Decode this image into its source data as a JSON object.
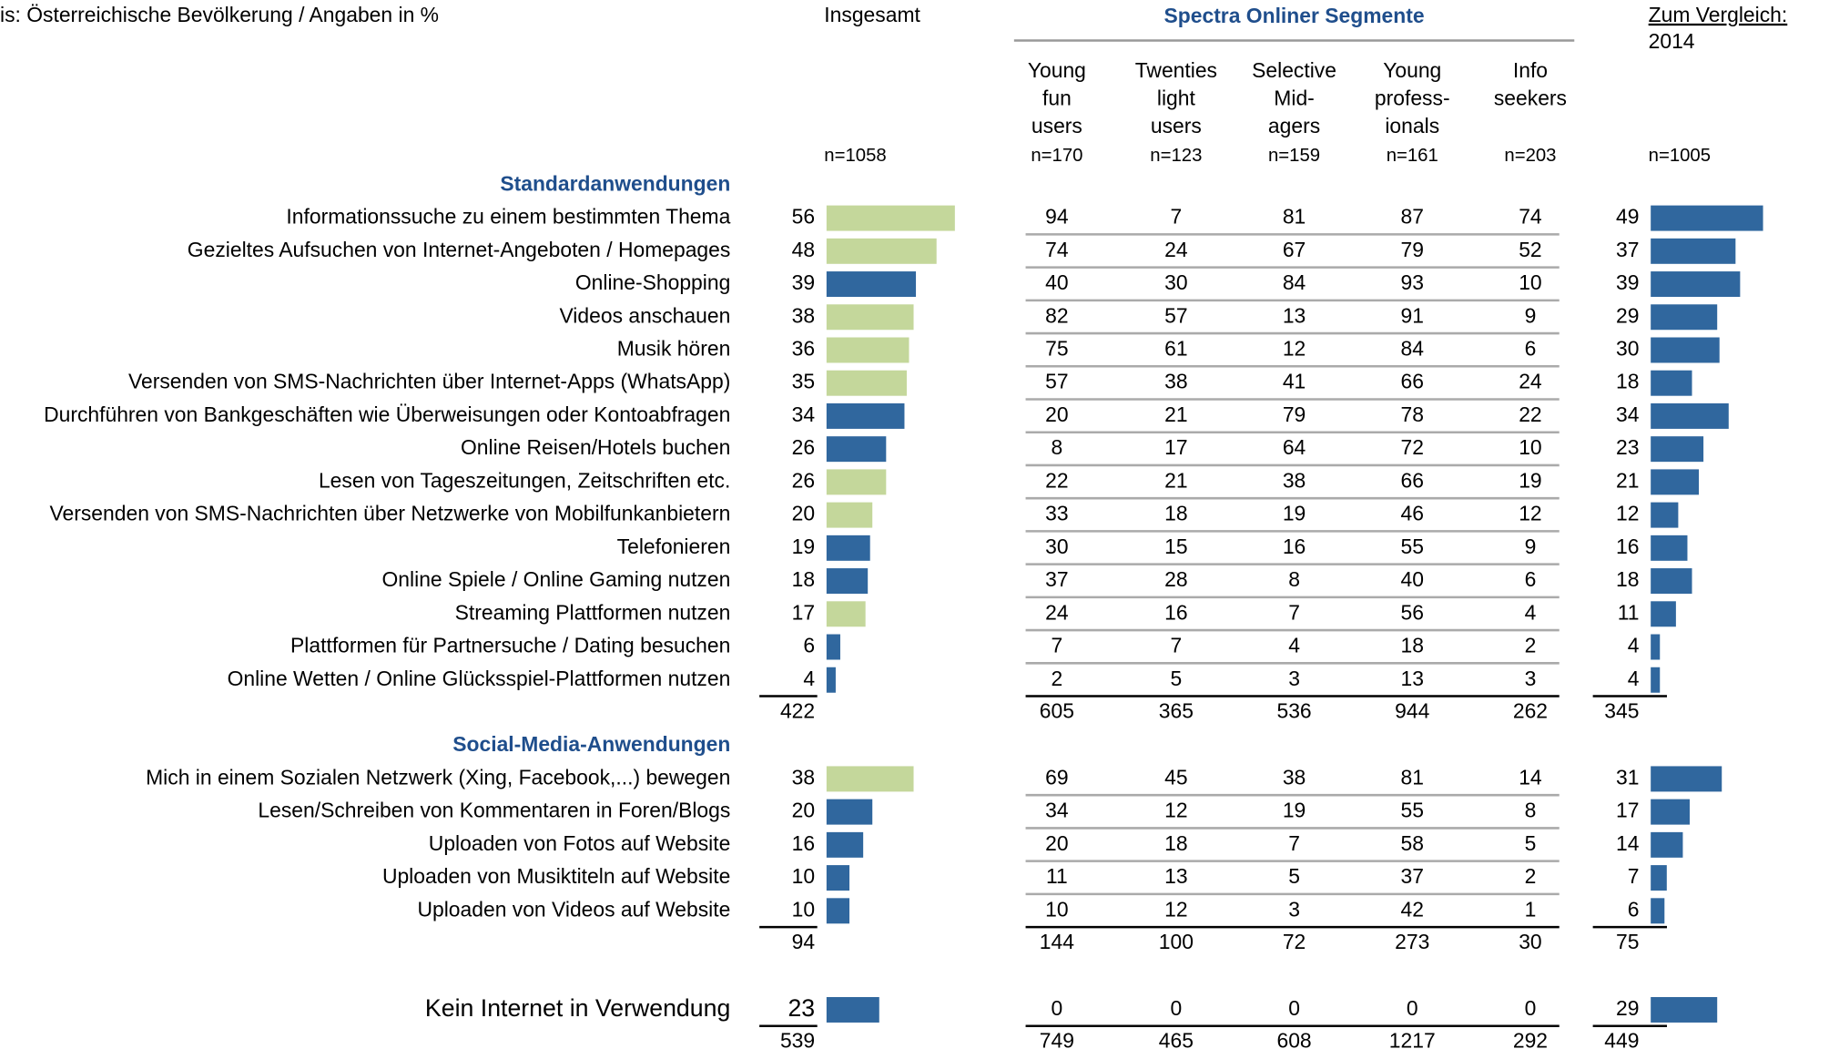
{
  "header": {
    "source": "is: Österreichische Bevölkerung / Angaben in %",
    "total": "Insgesamt",
    "segments": "Spectra Onliner Segmente",
    "compare": [
      "Zum Vergleich:",
      "2014"
    ]
  },
  "segment_names": [
    [
      "Young",
      "fun",
      "users"
    ],
    [
      "Twenties",
      "light",
      "users"
    ],
    [
      "Selective",
      "Mid-",
      "agers"
    ],
    [
      "Young",
      "profess-",
      "ionals"
    ],
    [
      "Info",
      "seekers"
    ]
  ],
  "n": {
    "total": "n=1058",
    "segments": [
      "n=170",
      "n=123",
      "n=159",
      "n=161",
      "n=203"
    ],
    "compare": "n=1005"
  },
  "compare_color": "#30679e",
  "sections": [
    {
      "title": "Standardanwendungen",
      "rows": [
        {
          "label": "Informationssuche zu einem bestimmten Thema",
          "total": 56,
          "color": "#c4d79b",
          "segments": [
            94,
            7,
            81,
            87,
            74
          ],
          "compare": 49
        },
        {
          "label": "Gezieltes Aufsuchen von Internet-Angeboten / Homepages",
          "total": 48,
          "color": "#c4d79b",
          "segments": [
            74,
            24,
            67,
            79,
            52
          ],
          "compare": 37
        },
        {
          "label": "Online-Shopping",
          "total": 39,
          "color": "#30679e",
          "segments": [
            40,
            30,
            84,
            93,
            10
          ],
          "compare": 39
        },
        {
          "label": "Videos anschauen",
          "total": 38,
          "color": "#c4d79b",
          "segments": [
            82,
            57,
            13,
            91,
            9
          ],
          "compare": 29
        },
        {
          "label": "Musik hören",
          "total": 36,
          "color": "#c4d79b",
          "segments": [
            75,
            61,
            12,
            84,
            6
          ],
          "compare": 30
        },
        {
          "label": "Versenden von SMS-Nachrichten über Internet-Apps (WhatsApp)",
          "total": 35,
          "color": "#c4d79b",
          "segments": [
            57,
            38,
            41,
            66,
            24
          ],
          "compare": 18
        },
        {
          "label": "Durchführen von Bankgeschäften wie Überweisungen oder Kontoabfragen",
          "total": 34,
          "color": "#30679e",
          "segments": [
            20,
            21,
            79,
            78,
            22
          ],
          "compare": 34
        },
        {
          "label": "Online Reisen/Hotels buchen",
          "total": 26,
          "color": "#30679e",
          "segments": [
            8,
            17,
            64,
            72,
            10
          ],
          "compare": 23
        },
        {
          "label": "Lesen von Tageszeitungen, Zeitschriften etc.",
          "total": 26,
          "color": "#c4d79b",
          "segments": [
            22,
            21,
            38,
            66,
            19
          ],
          "compare": 21
        },
        {
          "label": "Versenden von SMS-Nachrichten über Netzwerke von Mobilfunkanbietern",
          "total": 20,
          "color": "#c4d79b",
          "segments": [
            33,
            18,
            19,
            46,
            12
          ],
          "compare": 12
        },
        {
          "label": "Telefonieren",
          "total": 19,
          "color": "#30679e",
          "segments": [
            30,
            15,
            16,
            55,
            9
          ],
          "compare": 16
        },
        {
          "label": "Online Spiele / Online Gaming nutzen",
          "total": 18,
          "color": "#30679e",
          "segments": [
            37,
            28,
            8,
            40,
            6
          ],
          "compare": 18
        },
        {
          "label": "Streaming Plattformen nutzen",
          "total": 17,
          "color": "#c4d79b",
          "segments": [
            24,
            16,
            7,
            56,
            4
          ],
          "compare": 11
        },
        {
          "label": "Plattformen für Partnersuche / Dating besuchen",
          "total": 6,
          "color": "#30679e",
          "segments": [
            7,
            7,
            4,
            18,
            2
          ],
          "compare": 4
        },
        {
          "label": "Online Wetten / Online Glücksspiel-Plattformen nutzen",
          "total": 4,
          "color": "#30679e",
          "segments": [
            2,
            5,
            3,
            13,
            3
          ],
          "compare": 4
        }
      ],
      "sum": {
        "total": 422,
        "segments": [
          605,
          365,
          536,
          944,
          262
        ],
        "compare": 345
      }
    },
    {
      "title": "Social-Media-Anwendungen",
      "rows": [
        {
          "label": "Mich in einem Sozialen Netzwerk (Xing, Facebook,...) bewegen",
          "total": 38,
          "color": "#c4d79b",
          "segments": [
            69,
            45,
            38,
            81,
            14
          ],
          "compare": 31
        },
        {
          "label": "Lesen/Schreiben von Kommentaren in Foren/Blogs",
          "total": 20,
          "color": "#30679e",
          "segments": [
            34,
            12,
            19,
            55,
            8
          ],
          "compare": 17
        },
        {
          "label": "Uploaden von Fotos auf Website",
          "total": 16,
          "color": "#30679e",
          "segments": [
            20,
            18,
            7,
            58,
            5
          ],
          "compare": 14
        },
        {
          "label": "Uploaden von Musiktiteln auf Website",
          "total": 10,
          "color": "#30679e",
          "segments": [
            11,
            13,
            5,
            37,
            2
          ],
          "compare": 7
        },
        {
          "label": "Uploaden von Videos auf Website",
          "total": 10,
          "color": "#30679e",
          "segments": [
            10,
            12,
            3,
            42,
            1
          ],
          "compare": 6
        }
      ],
      "sum": {
        "total": 94,
        "segments": [
          144,
          100,
          72,
          273,
          30
        ],
        "compare": 75
      }
    },
    {
      "rows": [
        {
          "label": "Kein Internet in Verwendung",
          "total": 23,
          "color": "#30679e",
          "segments": [
            0,
            0,
            0,
            0,
            0
          ],
          "compare": 29
        }
      ],
      "sum": {
        "total": 539,
        "segments": [
          749,
          465,
          608,
          1217,
          292
        ],
        "compare": 449
      }
    }
  ]
}
